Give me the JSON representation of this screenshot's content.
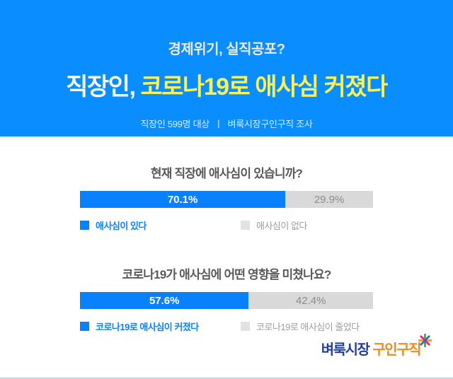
{
  "header": {
    "kicker": "경제위기, 실직공포?",
    "title_prefix": "직장인, ",
    "title_highlight": "코로나19로 애사심 커졌다",
    "meta_left": "직장인 599명 대상",
    "meta_separator": "ㅣ",
    "meta_right": "벼룩시장구인구직 조사"
  },
  "chart_data": [
    {
      "type": "bar",
      "title": "현재 직장에 애사심이 있습니까?",
      "categories": [
        "애사심이 있다",
        "애사심이 없다"
      ],
      "values": [
        70.1,
        29.9
      ],
      "value_labels": [
        "70.1%",
        "29.9%"
      ],
      "colors": [
        "#0a81fc",
        "#d9d9d9"
      ],
      "orientation": "horizontal-stacked",
      "legend_position": "bottom",
      "xlim": [
        0,
        100
      ],
      "grid": false
    },
    {
      "type": "bar",
      "title": "코로나19가 애사심에 어떤 영향을 미쳤나요?",
      "categories": [
        "코로나19로 애사심이 커졌다",
        "코로나19로 애사심이 줄었다"
      ],
      "values": [
        57.6,
        42.4
      ],
      "value_labels": [
        "57.6%",
        "42.4%"
      ],
      "colors": [
        "#0a81fc",
        "#d9d9d9"
      ],
      "orientation": "horizontal-stacked",
      "legend_position": "bottom",
      "xlim": [
        0,
        100
      ],
      "grid": false
    }
  ],
  "footer": {
    "logo_text_primary": "벼룩시장",
    "logo_text_secondary": "구인구직",
    "logo_icon": "sparkle-icon"
  },
  "colors": {
    "header_background": "#0a8dfe",
    "kicker_text": "#efe8d5",
    "title_text": "#ffffff",
    "title_highlight": "#f8f15a",
    "bar_primary": "#0a81fc",
    "bar_secondary": "#d9d9d9",
    "question_text": "#595959",
    "logo_primary": "#21409a",
    "logo_secondary": "#f18a1d"
  }
}
